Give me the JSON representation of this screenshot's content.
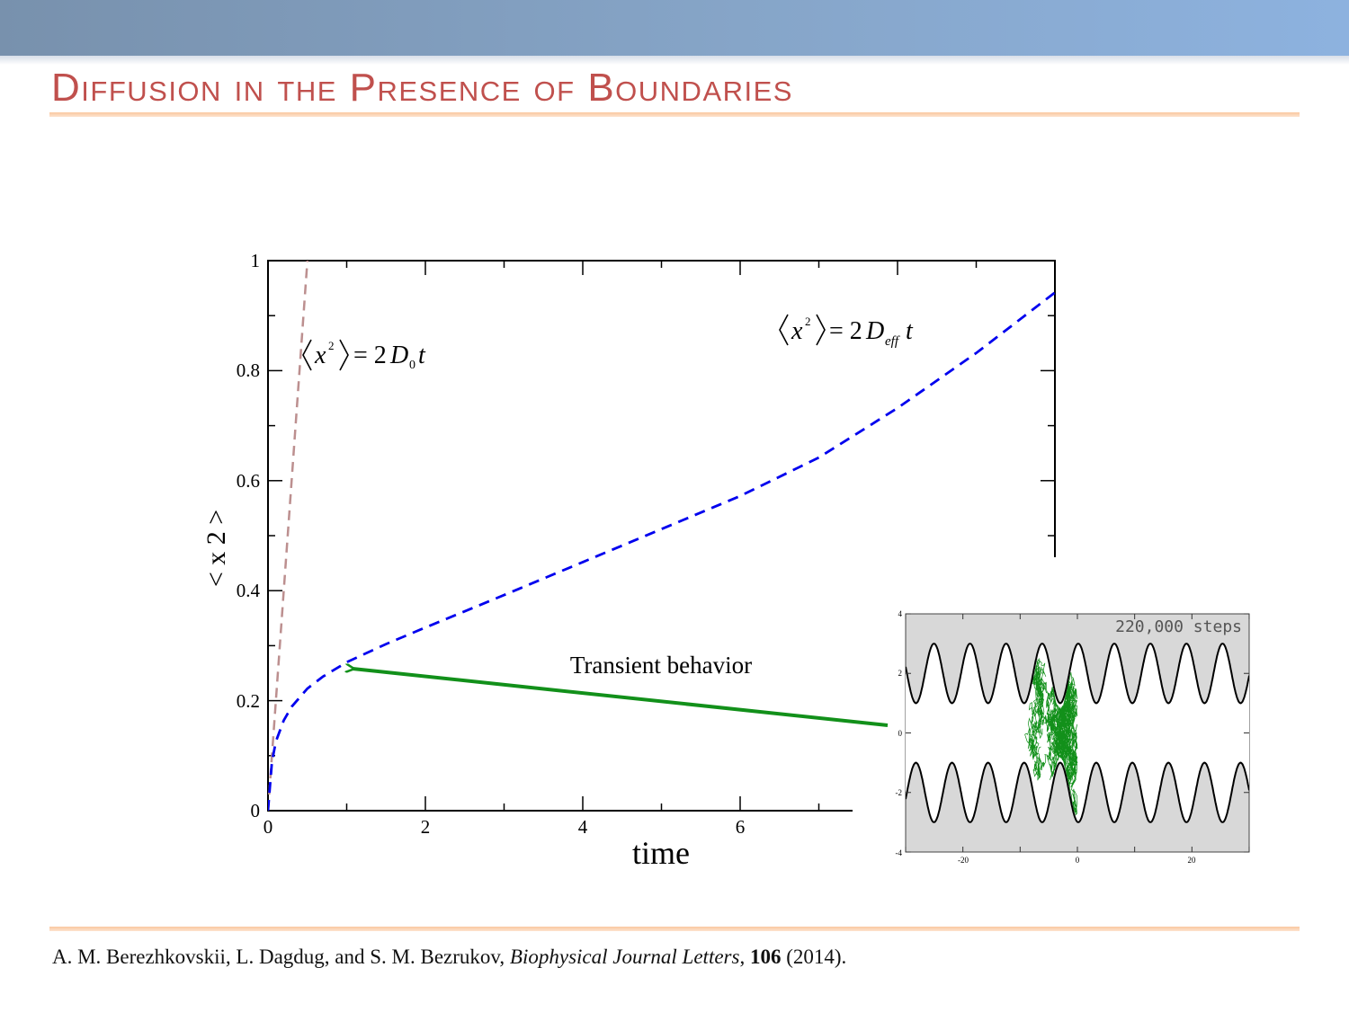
{
  "slide": {
    "title": "Diffusion in the Presence of Boundaries",
    "citation": {
      "authors": "A. M. Berezhkovskii, L. Dagdug, and S. M. Bezrukov, ",
      "journal": "Biophysical Journal Letters",
      "sep": ", ",
      "volume": "106",
      "year": " (2014)."
    },
    "colors": {
      "title": "#c0504d",
      "rule": "#f9c79f",
      "header_band": "#86a5c8"
    }
  },
  "chart_data": [
    {
      "type": "line",
      "xlabel": "time",
      "ylabel": "< x 2 >",
      "xlim": [
        0,
        10
      ],
      "ylim": [
        0,
        1
      ],
      "xticks": [
        "0",
        "2",
        "4",
        "6"
      ],
      "yticks": [
        "0",
        "0.2",
        "0.4",
        "0.6",
        "0.8",
        "1"
      ],
      "series": [
        {
          "color": "#bc8f8f",
          "style": "dashed",
          "x": [
            0,
            0.5
          ],
          "y": [
            0,
            1.0
          ]
        },
        {
          "color": "#0000ee",
          "style": "dashed",
          "x": [
            0,
            0.05,
            0.1,
            0.2,
            0.3,
            0.5,
            0.7,
            1.0,
            1.5,
            2,
            3,
            4,
            5,
            6,
            7,
            8,
            9,
            10
          ],
          "y": [
            0.0,
            0.089,
            0.126,
            0.164,
            0.189,
            0.222,
            0.244,
            0.27,
            0.303,
            0.333,
            0.392,
            0.452,
            0.512,
            0.572,
            0.642,
            0.732,
            0.832,
            0.942
          ]
        }
      ],
      "annotations": {
        "free_label": {
          "lhs": "x",
          "exp": "2",
          "eq": "= 2",
          "sym": "D",
          "sub": "0",
          "var": "t"
        },
        "eff_label": {
          "lhs": "x",
          "exp": "2",
          "eq": "= 2",
          "sym": "D",
          "sub": "eff",
          "var": "t"
        },
        "arrow_label": "Transient behavior",
        "arrow_color": "#12901a"
      }
    },
    {
      "type": "line",
      "title": "220,000 steps",
      "xlim": [
        -30,
        30
      ],
      "ylim": [
        -4,
        4
      ],
      "xticks": [
        "-20",
        "0",
        "20"
      ],
      "yticks": [
        "-4",
        "-2",
        "0",
        "2",
        "4"
      ],
      "background": "#d8d8d8",
      "series": [
        {
          "color": "#000000",
          "function": "upper boundary",
          "center": 2,
          "amplitude": 1,
          "period": 6.3
        },
        {
          "color": "#000000",
          "function": "lower boundary",
          "center": -2,
          "amplitude": 1,
          "period": 6.3
        },
        {
          "color": "#12901a",
          "function": "random walk trajectory",
          "x_range": [
            -11,
            0
          ],
          "y_range": [
            -3,
            2.5
          ]
        }
      ]
    }
  ]
}
